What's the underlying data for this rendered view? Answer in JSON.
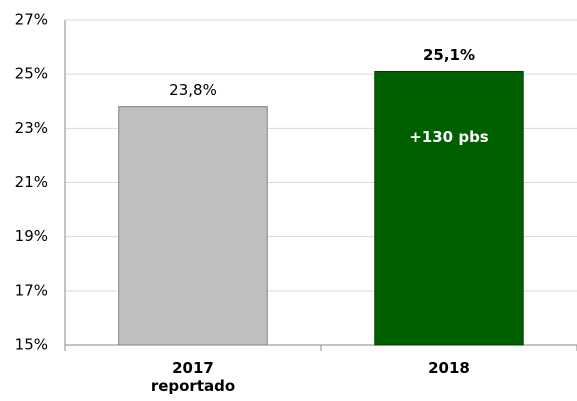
{
  "chart_data": {
    "type": "bar",
    "categories": [
      "2017 reportado",
      "2018"
    ],
    "values": [
      23.8,
      25.1
    ],
    "value_labels": [
      "23,8%",
      "25,1%"
    ],
    "colors": [
      "#c0c0c0",
      "#006000"
    ],
    "annotations": [
      "+130 pbs"
    ],
    "ylim": [
      15,
      27
    ],
    "yticks": [
      {
        "value": 15,
        "label": "15%"
      },
      {
        "value": 17,
        "label": "17%"
      },
      {
        "value": 19,
        "label": "19%"
      },
      {
        "value": 21,
        "label": "21%"
      },
      {
        "value": 23,
        "label": "23%"
      },
      {
        "value": 25,
        "label": "25%"
      },
      {
        "value": 27,
        "label": "27%"
      }
    ],
    "grid": true
  }
}
